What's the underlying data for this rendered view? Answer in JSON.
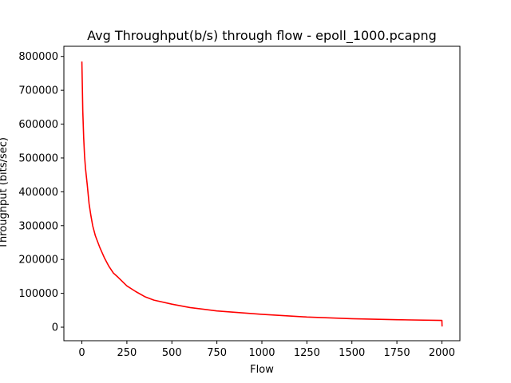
{
  "chart_data": {
    "type": "line",
    "title": "Avg Throughput(b/s) through flow - epoll_1000.pcapng",
    "xlabel": "Flow",
    "ylabel": "Throughput (bits/sec)",
    "xlim": [
      -100,
      2100
    ],
    "ylim": [
      -40000,
      830000
    ],
    "x_ticks": [
      0,
      250,
      500,
      750,
      1000,
      1250,
      1500,
      1750,
      2000
    ],
    "x_tick_labels": [
      "0",
      "250",
      "500",
      "750",
      "1000",
      "1250",
      "1500",
      "1750",
      "2000"
    ],
    "y_ticks": [
      0,
      100000,
      200000,
      300000,
      400000,
      500000,
      600000,
      700000,
      800000
    ],
    "y_tick_labels": [
      "0",
      "100000",
      "200000",
      "300000",
      "400000",
      "500000",
      "600000",
      "700000",
      "800000"
    ],
    "grid": false,
    "series": [
      {
        "color": "#ff0000",
        "x": [
          0,
          3,
          5,
          10,
          15,
          20,
          30,
          40,
          50,
          60,
          75,
          100,
          125,
          150,
          175,
          200,
          250,
          300,
          350,
          400,
          500,
          600,
          750,
          1000,
          1250,
          1500,
          1750,
          2000,
          2001
        ],
        "y": [
          785000,
          700000,
          640000,
          560000,
          505000,
          470000,
          420000,
          365000,
          330000,
          300000,
          270000,
          235000,
          205000,
          180000,
          160000,
          148000,
          122000,
          105000,
          90000,
          80000,
          68000,
          58000,
          48000,
          38000,
          30000,
          25000,
          22000,
          20000,
          2000
        ]
      }
    ]
  }
}
